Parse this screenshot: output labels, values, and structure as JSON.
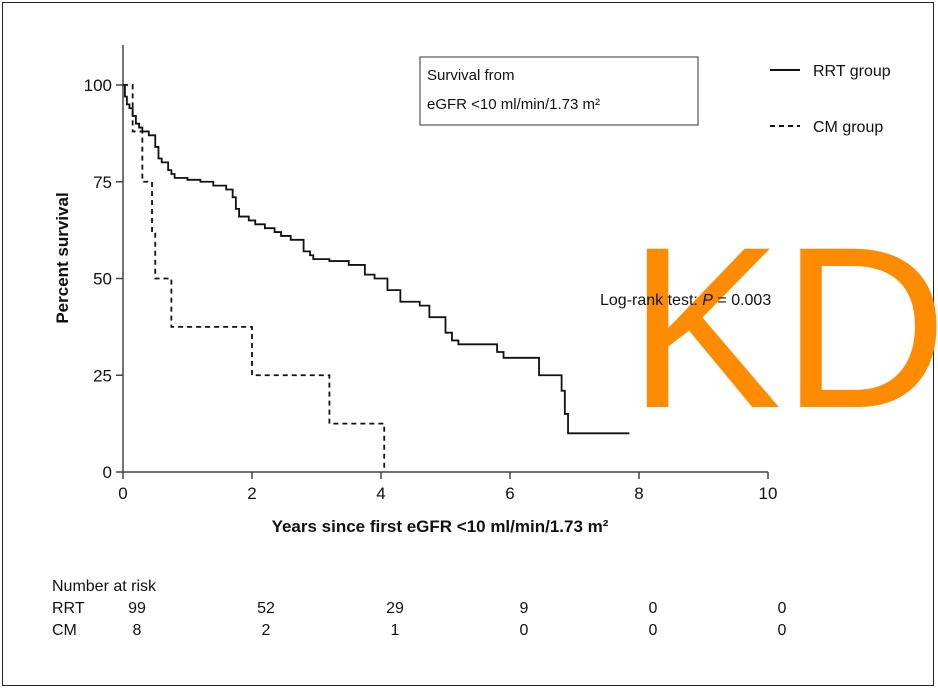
{
  "chart_data": {
    "type": "line",
    "xlabel": "Years since first eGFR <10 ml/min/1.73 m²",
    "ylabel": "Percent survival",
    "xlim": [
      0,
      10
    ],
    "ylim": [
      0,
      110
    ],
    "x_ticks": [
      0,
      2,
      4,
      6,
      8,
      10
    ],
    "y_ticks": [
      0,
      25,
      50,
      75,
      100
    ],
    "x_tick_labels": [
      "0",
      "2",
      "4",
      "6",
      "8",
      "10"
    ],
    "y_tick_labels": [
      "0",
      "25",
      "50",
      "75",
      "100"
    ],
    "inset_box": [
      "Survival from",
      "eGFR <10 ml/min/1.73 m²"
    ],
    "annotation_prefix": "Log-rank test: ",
    "annotation_p": "P",
    "annotation_suffix": " = 0.003",
    "legend_position": "top-right",
    "series": [
      {
        "name": "RRT group",
        "line_style": "solid",
        "points": [
          [
            0,
            100
          ],
          [
            0.03,
            97
          ],
          [
            0.06,
            95
          ],
          [
            0.1,
            94
          ],
          [
            0.15,
            92
          ],
          [
            0.2,
            90
          ],
          [
            0.25,
            89
          ],
          [
            0.3,
            88
          ],
          [
            0.4,
            87
          ],
          [
            0.5,
            84
          ],
          [
            0.55,
            81
          ],
          [
            0.6,
            80
          ],
          [
            0.7,
            78
          ],
          [
            0.75,
            77
          ],
          [
            0.8,
            76
          ],
          [
            1.0,
            75.5
          ],
          [
            1.2,
            75
          ],
          [
            1.4,
            74
          ],
          [
            1.6,
            73
          ],
          [
            1.7,
            71
          ],
          [
            1.75,
            68
          ],
          [
            1.8,
            66
          ],
          [
            1.95,
            65
          ],
          [
            2.05,
            64
          ],
          [
            2.2,
            63
          ],
          [
            2.35,
            62
          ],
          [
            2.45,
            61
          ],
          [
            2.6,
            60
          ],
          [
            2.8,
            57
          ],
          [
            2.9,
            56
          ],
          [
            2.95,
            55
          ],
          [
            3.2,
            54.5
          ],
          [
            3.5,
            53.5
          ],
          [
            3.75,
            51
          ],
          [
            3.9,
            50
          ],
          [
            4.1,
            47
          ],
          [
            4.3,
            44
          ],
          [
            4.6,
            43
          ],
          [
            4.75,
            40
          ],
          [
            5.0,
            36
          ],
          [
            5.1,
            34
          ],
          [
            5.2,
            33
          ],
          [
            5.8,
            31
          ],
          [
            5.9,
            29.5
          ],
          [
            6.4,
            29.5
          ],
          [
            6.45,
            25
          ],
          [
            6.75,
            25
          ],
          [
            6.8,
            21
          ],
          [
            6.85,
            15
          ],
          [
            6.9,
            10
          ],
          [
            7.85,
            10
          ]
        ]
      },
      {
        "name": "CM group",
        "line_style": "dashed",
        "points": [
          [
            0,
            100
          ],
          [
            0.15,
            100
          ],
          [
            0.15,
            88
          ],
          [
            0.3,
            88
          ],
          [
            0.3,
            75
          ],
          [
            0.45,
            75
          ],
          [
            0.45,
            62
          ],
          [
            0.5,
            62
          ],
          [
            0.5,
            50
          ],
          [
            0.75,
            50
          ],
          [
            0.75,
            37.5
          ],
          [
            2.0,
            37.5
          ],
          [
            2.0,
            25
          ],
          [
            3.2,
            25
          ],
          [
            3.2,
            12.5
          ],
          [
            4.05,
            12.5
          ],
          [
            4.05,
            0
          ]
        ]
      }
    ]
  },
  "number_at_risk": {
    "title": "Number at risk",
    "rows": [
      {
        "label": "RRT",
        "values": [
          "99",
          "52",
          "29",
          "9",
          "0",
          "0"
        ]
      },
      {
        "label": "CM",
        "values": [
          "8",
          "2",
          "1",
          "0",
          "0",
          "0"
        ]
      }
    ]
  },
  "watermark": "KD",
  "colors": {
    "line": "#111111",
    "watermark": "#ff8c00"
  }
}
